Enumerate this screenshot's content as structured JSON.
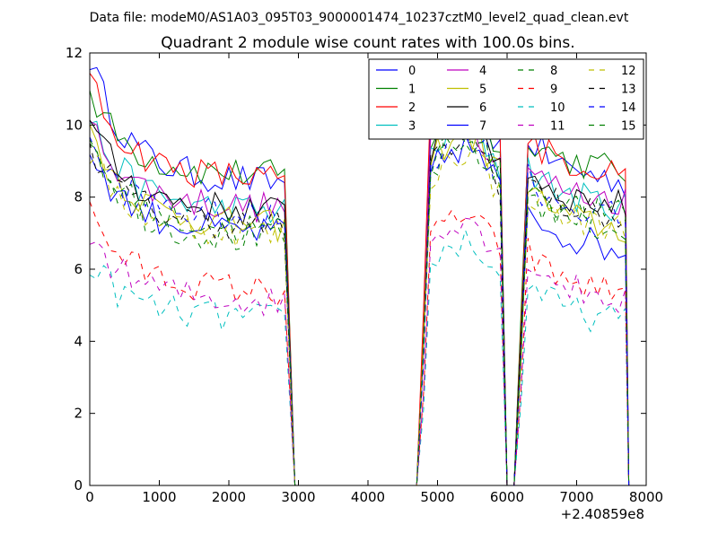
{
  "header_text": "Data file: modeM0/AS1A03_095T03_9000001474_10237cztM0_level2_quad_clean.evt",
  "chart_data": {
    "type": "line",
    "title": "Quadrant 2 module wise count rates with 100.0s bins.",
    "xlabel": "",
    "ylabel": "",
    "x_offset_label": "+2.40859e8",
    "xlim": [
      0,
      8000
    ],
    "ylim": [
      0,
      12
    ],
    "x_ticks": [
      "0",
      "1000",
      "2000",
      "3000",
      "4000",
      "5000",
      "6000",
      "7000",
      "8000"
    ],
    "y_ticks": [
      "0",
      "2",
      "4",
      "6",
      "8",
      "10",
      "12"
    ],
    "legend_position": "top-right",
    "legend_columns": 4,
    "segments": [
      {
        "start": 0,
        "count": 29,
        "step": 100,
        "drop_to": 2950
      },
      {
        "start": 4800,
        "count": 12,
        "step": 100,
        "drop_to": 6000
      },
      {
        "start": 6200,
        "count": 16,
        "step": 100,
        "drop_to": 7750
      }
    ],
    "series": [
      {
        "name": "0",
        "color": "#0000ff",
        "dash": false,
        "base": [
          8.6,
          9.4,
          9.0
        ],
        "spike": 11.9,
        "falloff": 0.1
      },
      {
        "name": "1",
        "color": "#008000",
        "dash": false,
        "base": [
          8.8,
          9.3,
          9.1
        ],
        "spike": 10.9,
        "falloff": 0.06
      },
      {
        "name": "2",
        "color": "#ff0000",
        "dash": false,
        "base": [
          8.7,
          10.0,
          9.0
        ],
        "spike": 11.2,
        "falloff": 0.04
      },
      {
        "name": "3",
        "color": "#00bfbf",
        "dash": false,
        "base": [
          7.8,
          8.8,
          8.2
        ],
        "spike": 10.2,
        "falloff": 0.08
      },
      {
        "name": "4",
        "color": "#bf00bf",
        "dash": false,
        "base": [
          7.9,
          8.9,
          8.2
        ],
        "spike": 10.1,
        "falloff": 0.05
      },
      {
        "name": "5",
        "color": "#bfbf00",
        "dash": false,
        "base": [
          7.4,
          8.6,
          7.6
        ],
        "spike": 10.0,
        "falloff": 0.09
      },
      {
        "name": "6",
        "color": "#000000",
        "dash": false,
        "base": [
          7.8,
          9.0,
          8.1
        ],
        "spike": 10.1,
        "falloff": 0.06
      },
      {
        "name": "7",
        "color": "#0000ff",
        "dash": false,
        "base": [
          7.2,
          8.2,
          7.1
        ],
        "spike": 9.3,
        "falloff": 0.1
      },
      {
        "name": "8",
        "color": "#008000",
        "dash": true,
        "base": [
          7.0,
          8.3,
          7.5
        ],
        "spike": 9.8,
        "falloff": 0.07
      },
      {
        "name": "9",
        "color": "#ff0000",
        "dash": true,
        "base": [
          5.6,
          6.3,
          5.8
        ],
        "spike": 7.6,
        "falloff": 0.08
      },
      {
        "name": "10",
        "color": "#00bfbf",
        "dash": true,
        "base": [
          4.8,
          5.6,
          5.0
        ],
        "spike": 6.2,
        "falloff": 0.08
      },
      {
        "name": "11",
        "color": "#bf00bf",
        "dash": true,
        "base": [
          5.3,
          6.3,
          5.7
        ],
        "spike": 7.0,
        "falloff": 0.1
      },
      {
        "name": "12",
        "color": "#bfbf00",
        "dash": true,
        "base": [
          7.2,
          8.1,
          7.5
        ],
        "spike": 9.2,
        "falloff": 0.06
      },
      {
        "name": "13",
        "color": "#000000",
        "dash": true,
        "base": [
          7.4,
          8.4,
          7.8
        ],
        "spike": 9.5,
        "falloff": 0.07
      },
      {
        "name": "14",
        "color": "#0000ff",
        "dash": true,
        "base": [
          7.6,
          8.6,
          7.9
        ],
        "spike": 9.4,
        "falloff": 0.09
      },
      {
        "name": "15",
        "color": "#008000",
        "dash": true,
        "base": [
          7.3,
          8.5,
          7.8
        ],
        "spike": 9.6,
        "falloff": 0.06
      }
    ]
  }
}
